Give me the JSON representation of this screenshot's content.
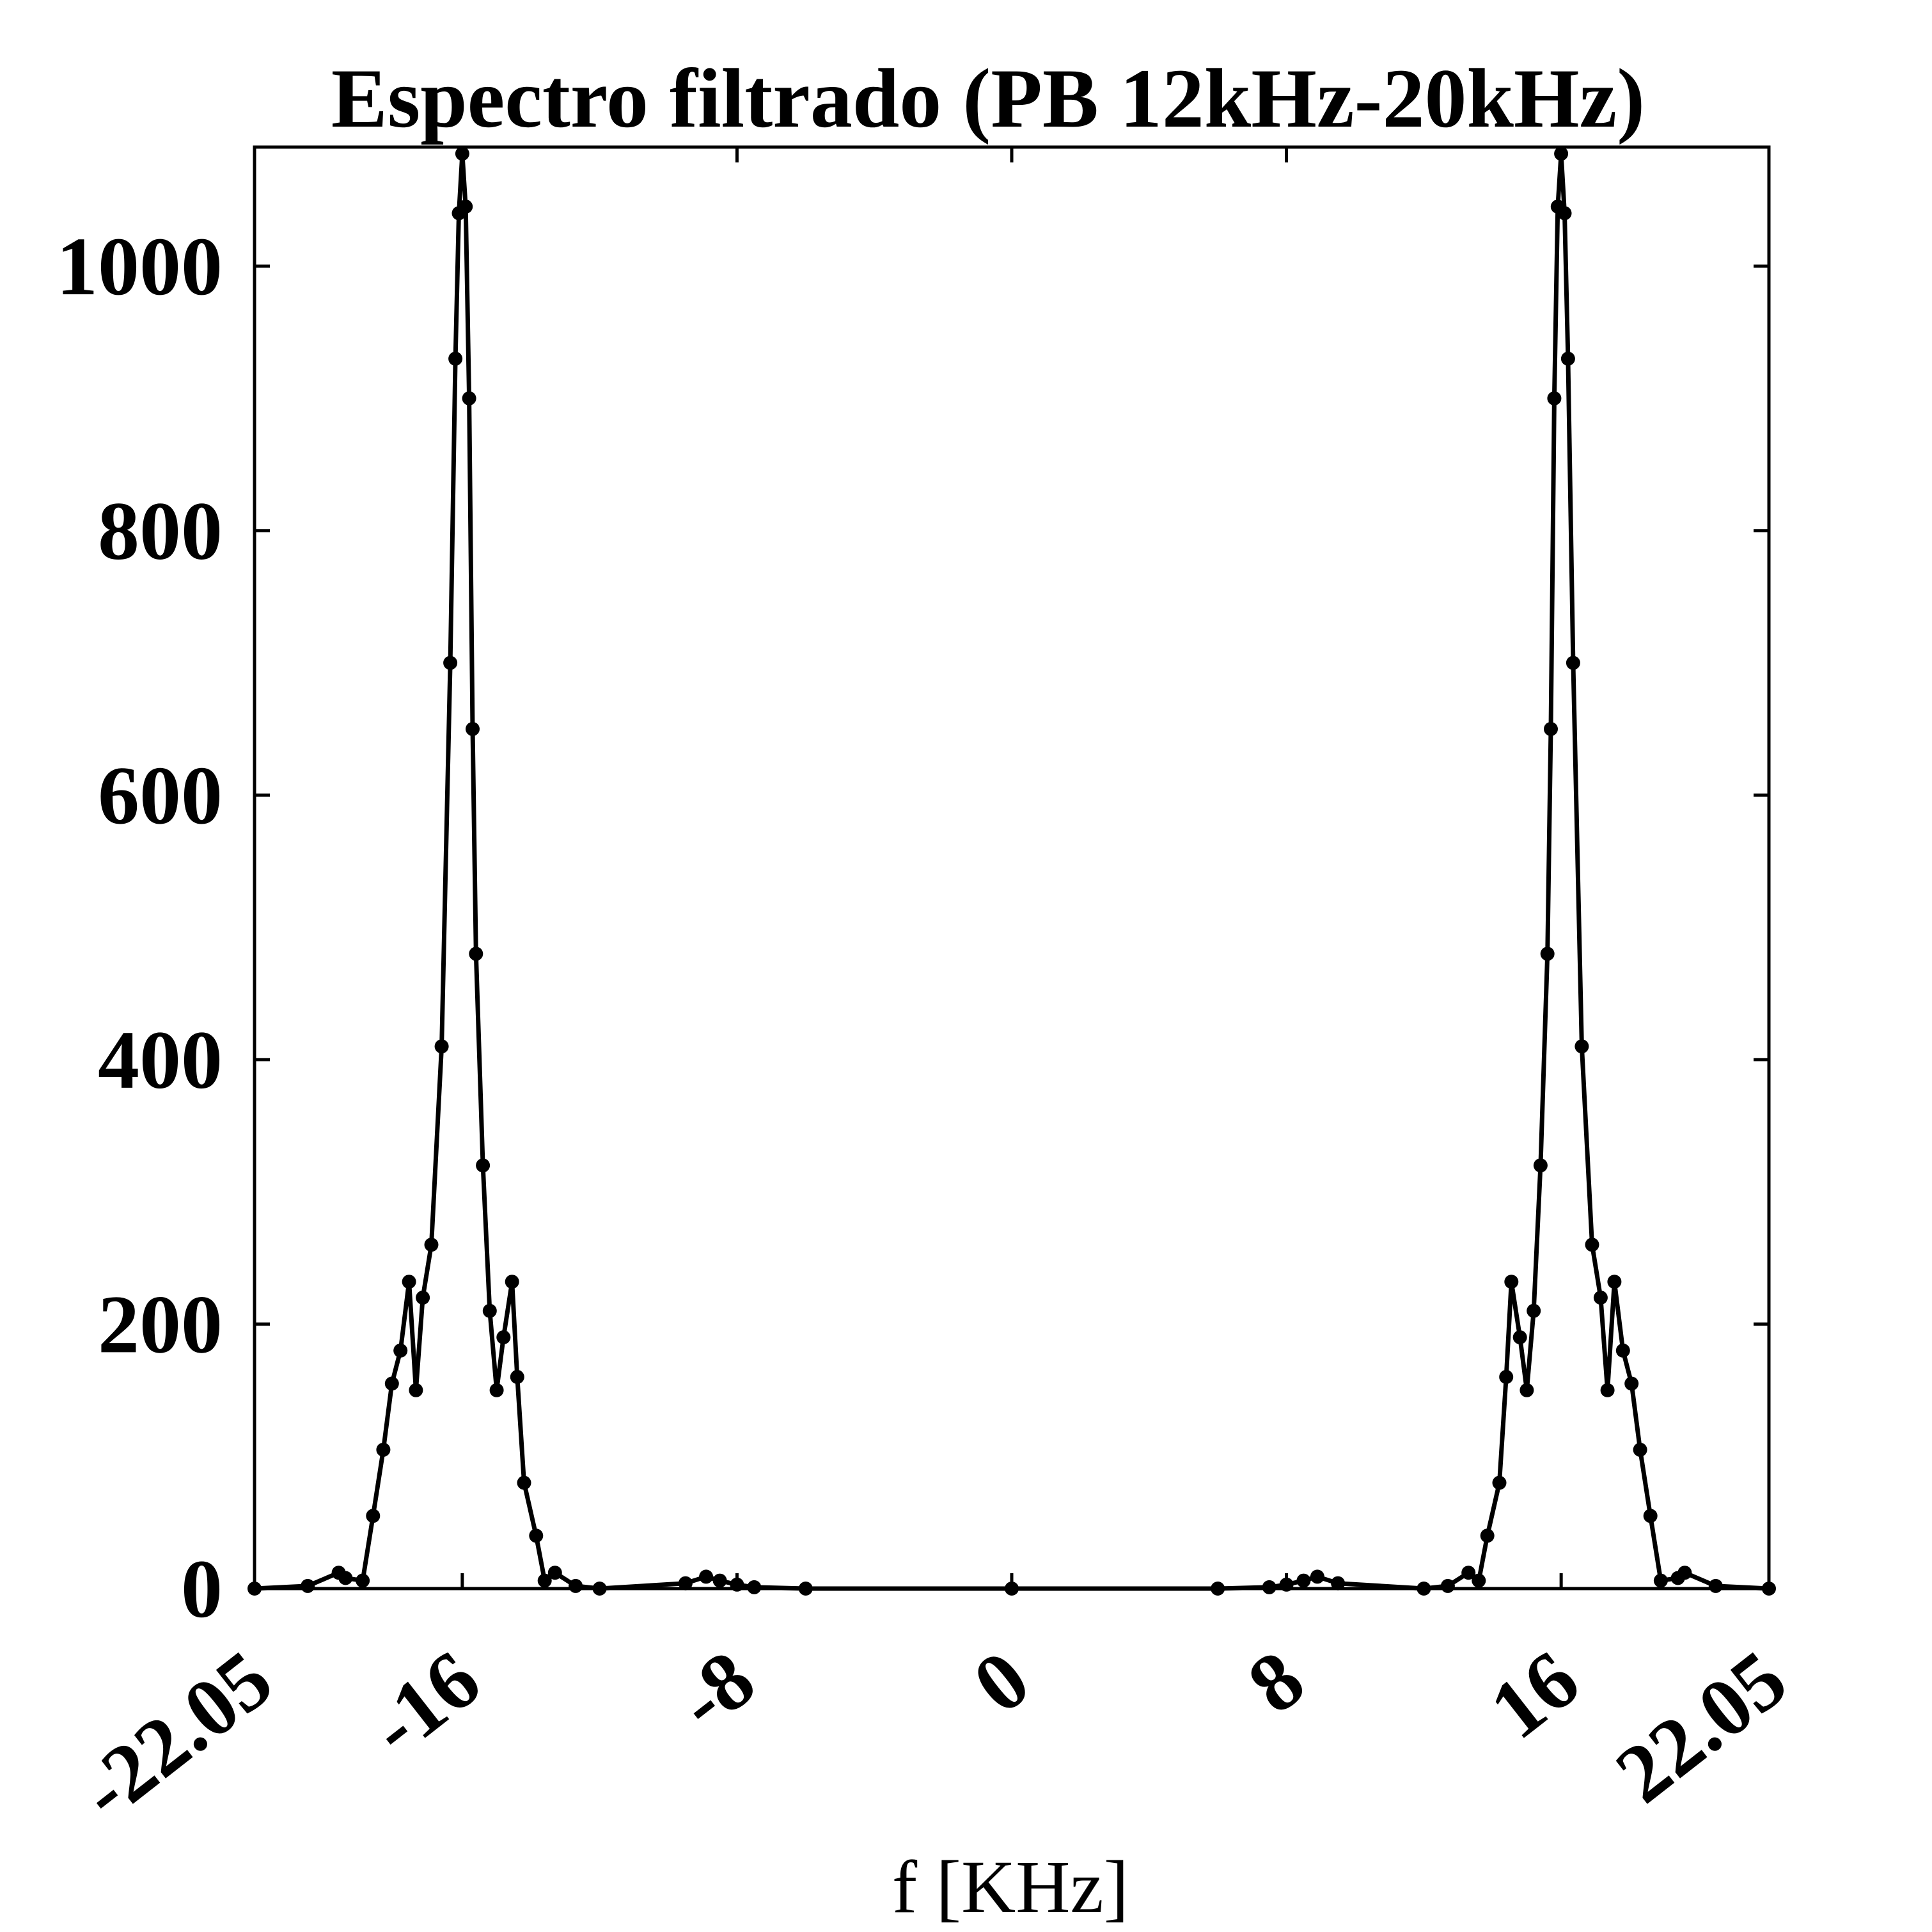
{
  "chart_data": {
    "type": "line",
    "title": "Espectro filtrado (PB 12kHz-20kHz)",
    "xlabel": "f [KHz]",
    "ylabel": "",
    "xlim": [
      -22.05,
      22.05
    ],
    "ylim": [
      0,
      1090
    ],
    "x_ticks": [
      -22.05,
      -16,
      -8,
      0,
      8,
      16,
      22.05
    ],
    "x_tick_labels": [
      "-22.05",
      "-16",
      "-8",
      "0",
      "8",
      "16",
      "22.05"
    ],
    "y_ticks": [
      0,
      200,
      400,
      600,
      800,
      1000
    ],
    "y_tick_labels": [
      "0",
      "200",
      "400",
      "600",
      "800",
      "1000"
    ],
    "grid": false,
    "line_color": "#000000",
    "marker": "filled-circle",
    "series": [
      {
        "x": [
          -22.05,
          -20.5,
          -19.6,
          -19.4,
          -18.9,
          -18.6,
          -18.3,
          -18.05,
          -17.8,
          -17.55,
          -17.35,
          -17.15,
          -16.9,
          -16.6,
          -16.35,
          -16.2,
          -16.1,
          -16.0,
          -15.9,
          -15.8,
          -15.7,
          -15.6,
          -15.4,
          -15.2,
          -15.0,
          -14.8,
          -14.55,
          -14.4,
          -14.2,
          -13.85,
          -13.6,
          -13.3,
          -12.7,
          -12.0,
          -9.5,
          -8.9,
          -8.5,
          -8.0,
          -7.5,
          -6.0,
          0.0,
          6.0,
          7.5,
          8.0,
          8.5,
          8.9,
          9.5,
          12.0,
          12.7,
          13.3,
          13.6,
          13.85,
          14.2,
          14.4,
          14.55,
          14.8,
          15.0,
          15.2,
          15.4,
          15.6,
          15.7,
          15.8,
          15.9,
          16.0,
          16.1,
          16.2,
          16.35,
          16.6,
          16.9,
          17.15,
          17.35,
          17.55,
          17.8,
          18.05,
          18.3,
          18.6,
          18.9,
          19.4,
          19.6,
          20.5,
          22.05
        ],
        "y": [
          0,
          2,
          12,
          8,
          6,
          55,
          105,
          155,
          180,
          232,
          150,
          220,
          260,
          410,
          700,
          930,
          1040,
          1085,
          1045,
          900,
          650,
          480,
          320,
          210,
          150,
          190,
          232,
          160,
          80,
          40,
          6,
          12,
          2,
          0,
          4,
          9,
          6,
          3,
          1,
          0,
          0,
          0,
          1,
          3,
          6,
          9,
          4,
          0,
          2,
          12,
          6,
          40,
          80,
          160,
          232,
          190,
          150,
          210,
          320,
          480,
          650,
          900,
          1045,
          1085,
          1040,
          930,
          700,
          410,
          260,
          220,
          150,
          232,
          180,
          155,
          105,
          55,
          6,
          8,
          12,
          2,
          0
        ]
      }
    ]
  }
}
